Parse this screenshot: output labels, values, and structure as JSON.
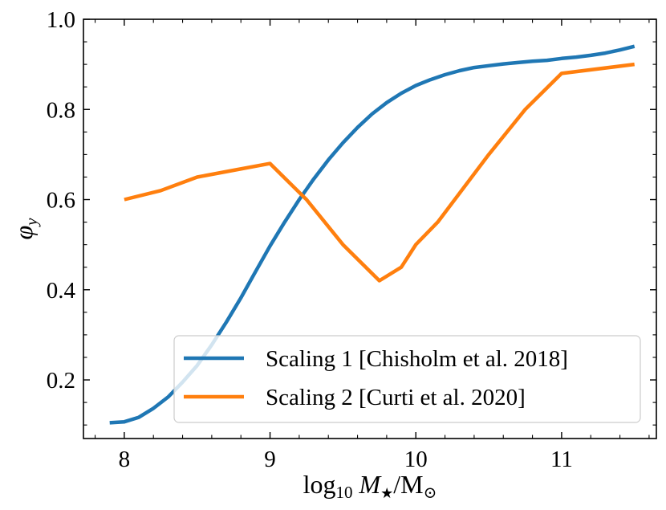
{
  "chart_data": {
    "type": "line",
    "title": "",
    "xlabel": "log10 M★/M⊙",
    "xlabel_parts": {
      "prefix": "log",
      "sub": "10",
      "var": "M",
      "var_sub": "★",
      "suffix": "/M",
      "suffix_sub": "⊙"
    },
    "ylabel": "φy",
    "ylabel_parts": {
      "symbol": "φ",
      "sub": "y"
    },
    "xlim": [
      7.72,
      11.65
    ],
    "ylim": [
      0.07,
      1.0
    ],
    "xticks": [
      8,
      9,
      10,
      11
    ],
    "xtick_labels": [
      "8",
      "9",
      "10",
      "11"
    ],
    "yticks": [
      0.2,
      0.4,
      0.6,
      0.8,
      1.0
    ],
    "ytick_labels": [
      "0.2",
      "0.4",
      "0.6",
      "0.8",
      "1.0"
    ],
    "legend_position": "lower-right",
    "grid": false,
    "series": [
      {
        "name": "Scaling 1 [Chisholm et al. 2018]",
        "color": "#1f77b4",
        "x": [
          7.9,
          8.0,
          8.1,
          8.2,
          8.3,
          8.4,
          8.5,
          8.6,
          8.7,
          8.8,
          8.9,
          9.0,
          9.1,
          9.2,
          9.3,
          9.4,
          9.5,
          9.6,
          9.7,
          9.8,
          9.9,
          10.0,
          10.1,
          10.2,
          10.3,
          10.4,
          10.5,
          10.6,
          10.7,
          10.8,
          10.9,
          11.0,
          11.1,
          11.2,
          11.3,
          11.4,
          11.5
        ],
        "values": [
          0.105,
          0.107,
          0.117,
          0.137,
          0.162,
          0.195,
          0.232,
          0.278,
          0.328,
          0.382,
          0.44,
          0.497,
          0.55,
          0.6,
          0.646,
          0.688,
          0.726,
          0.76,
          0.79,
          0.815,
          0.836,
          0.853,
          0.866,
          0.877,
          0.886,
          0.893,
          0.897,
          0.901,
          0.904,
          0.907,
          0.909,
          0.913,
          0.916,
          0.92,
          0.925,
          0.932,
          0.94
        ]
      },
      {
        "name": "Scaling 2 [Curti et al. 2020]",
        "color": "#ff7f0e",
        "x": [
          8.0,
          8.25,
          8.5,
          8.75,
          9.0,
          9.25,
          9.5,
          9.75,
          9.9,
          10.0,
          10.15,
          10.5,
          10.75,
          11.0,
          11.5
        ],
        "values": [
          0.6,
          0.62,
          0.65,
          0.665,
          0.68,
          0.6,
          0.5,
          0.42,
          0.45,
          0.5,
          0.55,
          0.7,
          0.8,
          0.88,
          0.9
        ]
      }
    ]
  }
}
